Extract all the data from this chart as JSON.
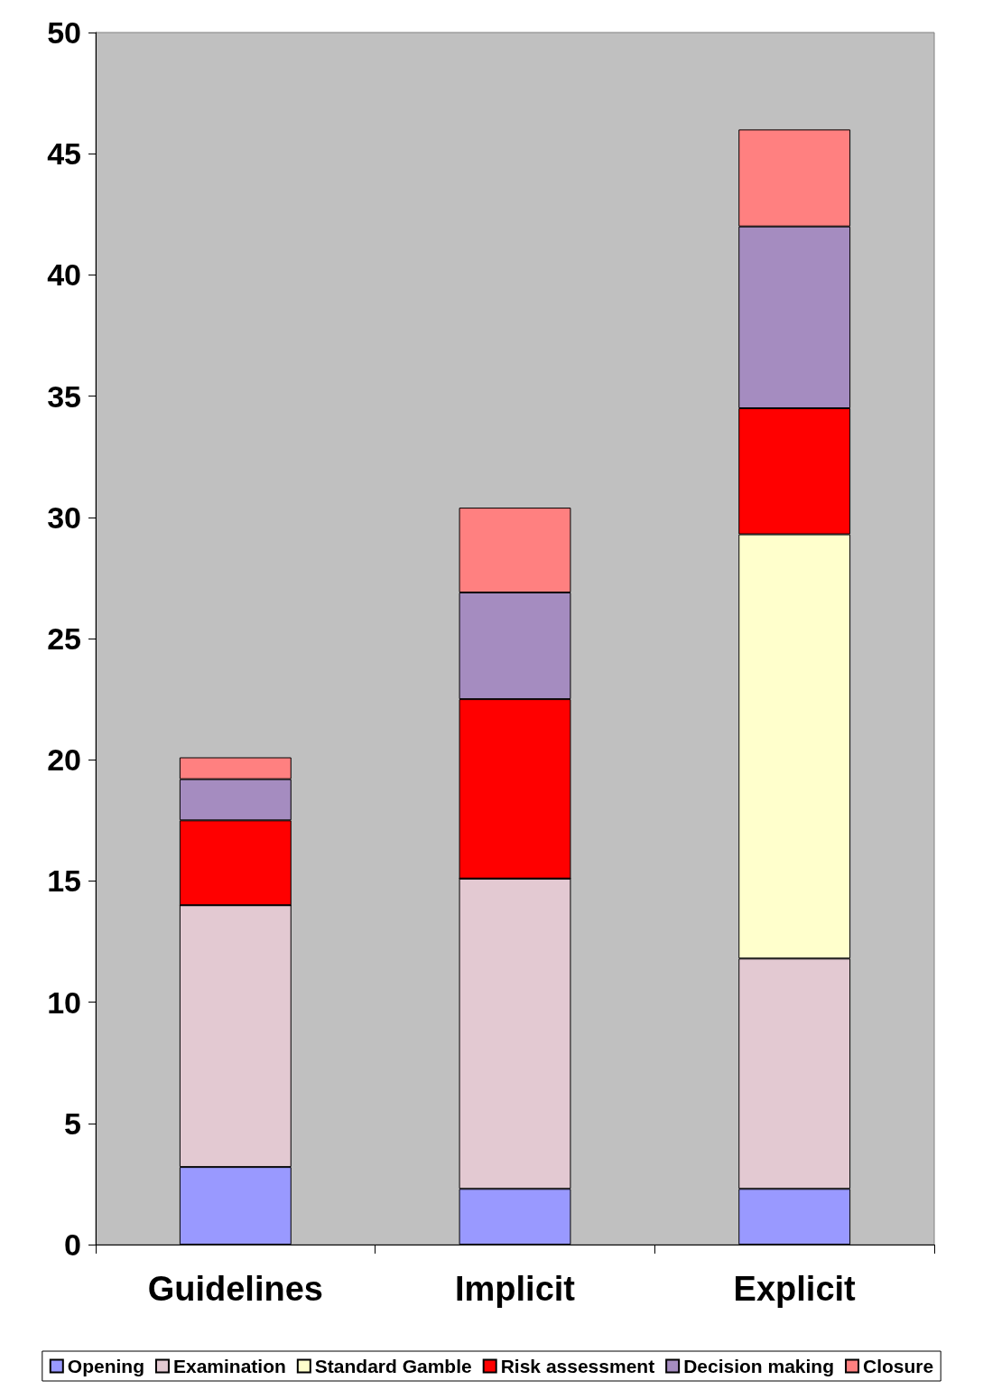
{
  "chart_data": {
    "type": "bar",
    "stacked": true,
    "categories": [
      "Guidelines",
      "Implicit",
      "Explicit"
    ],
    "series": [
      {
        "name": "Opening",
        "color": "#9999ff",
        "values": [
          3.2,
          2.3,
          2.3
        ]
      },
      {
        "name": "Examination",
        "color": "#e3c9d2",
        "values": [
          10.8,
          12.8,
          9.5
        ]
      },
      {
        "name": "Standard Gamble",
        "color": "#ffffcc",
        "values": [
          0,
          0,
          17.5
        ]
      },
      {
        "name": "Risk assessment",
        "color": "#ff0000",
        "values": [
          3.5,
          7.4,
          5.2
        ]
      },
      {
        "name": "Decision making",
        "color": "#a58cc0",
        "values": [
          1.7,
          4.4,
          7.5
        ]
      },
      {
        "name": "Closure",
        "color": "#ff8080",
        "values": [
          0.9,
          3.5,
          4.0
        ]
      }
    ],
    "ylim": [
      0,
      50
    ],
    "yticks": [
      0,
      5,
      10,
      15,
      20,
      25,
      30,
      35,
      40,
      45,
      50
    ],
    "grid": false,
    "legend": "bottom"
  }
}
